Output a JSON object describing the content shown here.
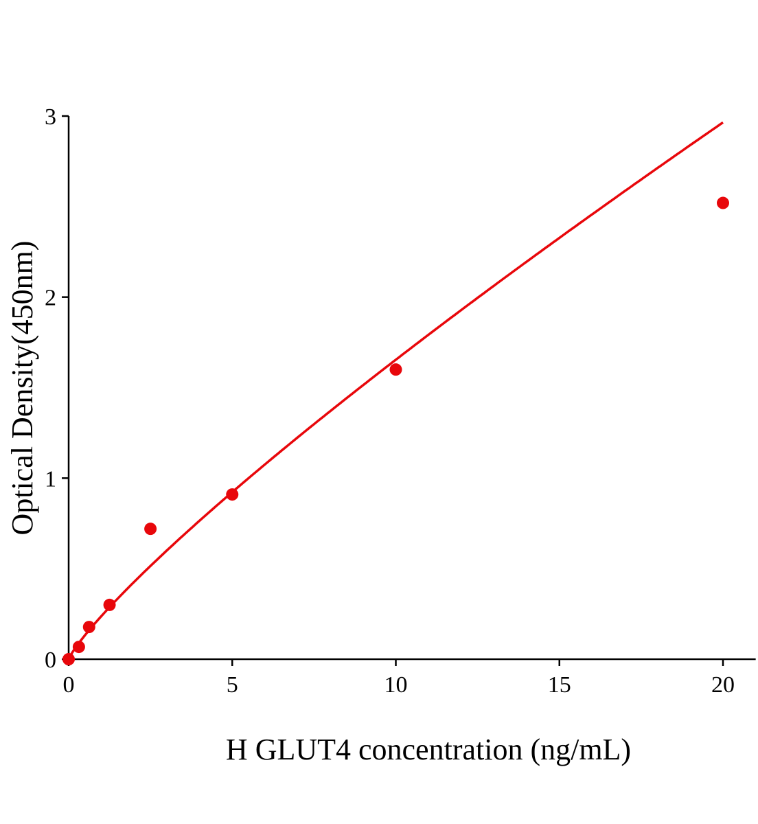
{
  "chart_data": {
    "type": "scatter",
    "title": "",
    "xlabel": "H GLUT4 concentration (ng/mL)",
    "ylabel": "Optical Density(450nm)",
    "xlim": [
      0,
      21
    ],
    "ylim": [
      0,
      3
    ],
    "xticks": [
      "0",
      "5",
      "10",
      "15",
      "20"
    ],
    "yticks": [
      "0",
      "1",
      "2",
      "3"
    ],
    "grid": false,
    "color": "#e8070b",
    "points": {
      "x": [
        0,
        0.3125,
        0.625,
        1.25,
        2.5,
        5,
        10,
        20
      ],
      "y": [
        0,
        0.068,
        0.178,
        0.3,
        0.72,
        0.91,
        1.6,
        2.52
      ]
    },
    "fit": {
      "type": "curve",
      "color": "#e8070b"
    }
  }
}
